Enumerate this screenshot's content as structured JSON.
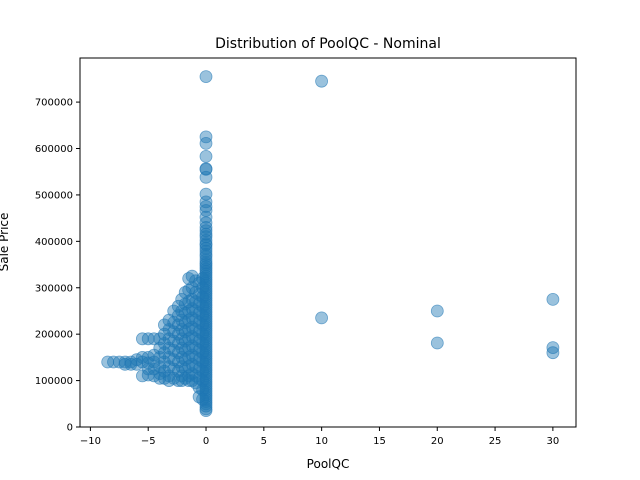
{
  "chart_data": {
    "type": "scatter",
    "title": "Distribution of PoolQC - Nominal",
    "xlabel": "PoolQC",
    "ylabel": "Sale Price",
    "xlim": [
      -10.9,
      32.0
    ],
    "ylim": [
      0,
      795000
    ],
    "x_ticks": [
      -10,
      -5,
      0,
      5,
      10,
      15,
      20,
      25,
      30
    ],
    "y_ticks": [
      0,
      100000,
      200000,
      300000,
      400000,
      500000,
      600000,
      700000
    ],
    "grid": false,
    "legend": "none",
    "marker_color": "#1f77b4",
    "marker_alpha": 0.45,
    "series": [
      {
        "points": [
          [
            0,
            755000
          ],
          [
            0,
            625000
          ],
          [
            0,
            611000
          ],
          [
            0,
            582933
          ],
          [
            0,
            556581
          ],
          [
            0,
            555000
          ],
          [
            0,
            538000
          ],
          [
            0,
            501837
          ],
          [
            0,
            485000
          ],
          [
            0,
            475000
          ],
          [
            0,
            466500
          ],
          [
            0,
            451950
          ],
          [
            0,
            440000
          ],
          [
            0,
            430000
          ],
          [
            0,
            423000
          ],
          [
            0,
            415298
          ],
          [
            0,
            410000
          ],
          [
            0,
            402000
          ],
          [
            0,
            395000
          ],
          [
            0,
            392000
          ],
          [
            0,
            385000
          ],
          [
            0,
            378500
          ],
          [
            0,
            372000
          ],
          [
            0,
            367294
          ],
          [
            0,
            360000
          ],
          [
            0,
            354000
          ],
          [
            0,
            350000
          ],
          [
            0,
            345000
          ],
          [
            0,
            340000
          ],
          [
            0,
            335000
          ],
          [
            0,
            330000
          ],
          [
            0,
            325000
          ],
          [
            0,
            320000
          ],
          [
            0,
            315000
          ],
          [
            0,
            310000
          ],
          [
            0,
            305000
          ],
          [
            0,
            300000
          ],
          [
            0,
            295000
          ],
          [
            0,
            290000
          ],
          [
            0,
            285000
          ],
          [
            0,
            280000
          ],
          [
            0,
            275000
          ],
          [
            0,
            270000
          ],
          [
            0,
            265000
          ],
          [
            0,
            260000
          ],
          [
            0,
            255000
          ],
          [
            0,
            250000
          ],
          [
            0,
            245000
          ],
          [
            0,
            240000
          ],
          [
            0,
            235000
          ],
          [
            0,
            230000
          ],
          [
            0,
            225000
          ],
          [
            0,
            220000
          ],
          [
            0,
            215000
          ],
          [
            0,
            210000
          ],
          [
            0,
            205000
          ],
          [
            0,
            200000
          ],
          [
            0,
            195000
          ],
          [
            0,
            190000
          ],
          [
            0,
            185000
          ],
          [
            0,
            180000
          ],
          [
            0,
            175000
          ],
          [
            0,
            170000
          ],
          [
            0,
            165000
          ],
          [
            0,
            160000
          ],
          [
            0,
            155000
          ],
          [
            0,
            150000
          ],
          [
            0,
            145000
          ],
          [
            0,
            140000
          ],
          [
            0,
            135000
          ],
          [
            0,
            130000
          ],
          [
            0,
            125000
          ],
          [
            0,
            120000
          ],
          [
            0,
            115000
          ],
          [
            0,
            110000
          ],
          [
            0,
            105000
          ],
          [
            0,
            100000
          ],
          [
            0,
            95000
          ],
          [
            0,
            90000
          ],
          [
            0,
            85000
          ],
          [
            0,
            80000
          ],
          [
            0,
            75000
          ],
          [
            0,
            70000
          ],
          [
            0,
            65000
          ],
          [
            0,
            60000
          ],
          [
            0,
            55000
          ],
          [
            0,
            50000
          ],
          [
            0,
            45000
          ],
          [
            0,
            39300
          ],
          [
            0,
            35311
          ],
          [
            -0.3,
            320000
          ],
          [
            -0.3,
            300000
          ],
          [
            -0.3,
            280000
          ],
          [
            -0.3,
            260000
          ],
          [
            -0.3,
            240000
          ],
          [
            -0.3,
            220000
          ],
          [
            -0.3,
            200000
          ],
          [
            -0.3,
            180000
          ],
          [
            -0.3,
            160000
          ],
          [
            -0.3,
            140000
          ],
          [
            -0.3,
            120000
          ],
          [
            -0.3,
            100000
          ],
          [
            -0.3,
            80000
          ],
          [
            -0.3,
            60000
          ],
          [
            -0.6,
            310000
          ],
          [
            -0.6,
            285000
          ],
          [
            -0.6,
            265000
          ],
          [
            -0.6,
            245000
          ],
          [
            -0.6,
            225000
          ],
          [
            -0.6,
            205000
          ],
          [
            -0.6,
            185000
          ],
          [
            -0.6,
            165000
          ],
          [
            -0.6,
            145000
          ],
          [
            -0.6,
            125000
          ],
          [
            -0.6,
            105000
          ],
          [
            -0.6,
            85000
          ],
          [
            -0.6,
            65000
          ],
          [
            -0.9,
            315000
          ],
          [
            -0.9,
            290000
          ],
          [
            -0.9,
            270000
          ],
          [
            -0.9,
            250000
          ],
          [
            -0.9,
            230000
          ],
          [
            -0.9,
            210000
          ],
          [
            -0.9,
            190000
          ],
          [
            -0.9,
            170000
          ],
          [
            -0.9,
            150000
          ],
          [
            -0.9,
            130000
          ],
          [
            -0.9,
            110000
          ],
          [
            -0.9,
            95000
          ],
          [
            -1.2,
            325000
          ],
          [
            -1.2,
            300000
          ],
          [
            -1.2,
            275000
          ],
          [
            -1.2,
            255000
          ],
          [
            -1.2,
            235000
          ],
          [
            -1.2,
            215000
          ],
          [
            -1.2,
            195000
          ],
          [
            -1.2,
            175000
          ],
          [
            -1.2,
            155000
          ],
          [
            -1.2,
            135000
          ],
          [
            -1.2,
            115000
          ],
          [
            -1.2,
            100000
          ],
          [
            -1.5,
            320000
          ],
          [
            -1.5,
            295000
          ],
          [
            -1.5,
            270000
          ],
          [
            -1.5,
            250000
          ],
          [
            -1.5,
            230000
          ],
          [
            -1.5,
            210000
          ],
          [
            -1.5,
            190000
          ],
          [
            -1.5,
            170000
          ],
          [
            -1.5,
            150000
          ],
          [
            -1.5,
            130000
          ],
          [
            -1.5,
            110000
          ],
          [
            -1.5,
            100000
          ],
          [
            -1.8,
            290000
          ],
          [
            -1.8,
            265000
          ],
          [
            -1.8,
            245000
          ],
          [
            -1.8,
            225000
          ],
          [
            -1.8,
            205000
          ],
          [
            -1.8,
            185000
          ],
          [
            -1.8,
            165000
          ],
          [
            -1.8,
            145000
          ],
          [
            -1.8,
            125000
          ],
          [
            -1.8,
            105000
          ],
          [
            -2.1,
            275000
          ],
          [
            -2.1,
            250000
          ],
          [
            -2.1,
            230000
          ],
          [
            -2.1,
            210000
          ],
          [
            -2.1,
            190000
          ],
          [
            -2.1,
            170000
          ],
          [
            -2.1,
            150000
          ],
          [
            -2.1,
            130000
          ],
          [
            -2.1,
            110000
          ],
          [
            -2.1,
            100000
          ],
          [
            -2.4,
            260000
          ],
          [
            -2.4,
            240000
          ],
          [
            -2.4,
            220000
          ],
          [
            -2.4,
            200000
          ],
          [
            -2.4,
            180000
          ],
          [
            -2.4,
            160000
          ],
          [
            -2.4,
            140000
          ],
          [
            -2.4,
            120000
          ],
          [
            -2.4,
            100000
          ],
          [
            -2.8,
            250000
          ],
          [
            -2.8,
            225000
          ],
          [
            -2.8,
            205000
          ],
          [
            -2.8,
            185000
          ],
          [
            -2.8,
            165000
          ],
          [
            -2.8,
            145000
          ],
          [
            -2.8,
            125000
          ],
          [
            -2.8,
            105000
          ],
          [
            -3.2,
            230000
          ],
          [
            -3.2,
            210000
          ],
          [
            -3.2,
            190000
          ],
          [
            -3.2,
            170000
          ],
          [
            -3.2,
            150000
          ],
          [
            -3.2,
            130000
          ],
          [
            -3.2,
            110000
          ],
          [
            -3.2,
            100000
          ],
          [
            -3.6,
            220000
          ],
          [
            -3.6,
            200000
          ],
          [
            -3.6,
            180000
          ],
          [
            -3.6,
            160000
          ],
          [
            -3.6,
            140000
          ],
          [
            -3.6,
            120000
          ],
          [
            -3.6,
            105000
          ],
          [
            -4.0,
            190000
          ],
          [
            -4.0,
            170000
          ],
          [
            -4.0,
            150000
          ],
          [
            -4.0,
            130000
          ],
          [
            -4.0,
            115000
          ],
          [
            -4.0,
            105000
          ],
          [
            -4.5,
            190000
          ],
          [
            -4.5,
            155000
          ],
          [
            -4.5,
            140000
          ],
          [
            -4.5,
            125000
          ],
          [
            -4.5,
            110000
          ],
          [
            -5.0,
            190000
          ],
          [
            -5.0,
            150000
          ],
          [
            -5.0,
            138000
          ],
          [
            -5.0,
            125000
          ],
          [
            -5.0,
            112000
          ],
          [
            -5.5,
            190000
          ],
          [
            -5.5,
            150000
          ],
          [
            -5.5,
            140000
          ],
          [
            -5.5,
            110000
          ],
          [
            -6.0,
            145000
          ],
          [
            -6.0,
            135000
          ],
          [
            -6.5,
            140000
          ],
          [
            -6.5,
            135000
          ],
          [
            -7.0,
            140000
          ],
          [
            -7.0,
            135000
          ],
          [
            -7.5,
            140000
          ],
          [
            -8.0,
            140000
          ],
          [
            -8.5,
            140000
          ],
          [
            10,
            745000
          ],
          [
            10,
            235000
          ],
          [
            20,
            250000
          ],
          [
            20,
            181000
          ],
          [
            30,
            274970
          ],
          [
            30,
            171000
          ],
          [
            30,
            160000
          ]
        ]
      }
    ]
  }
}
